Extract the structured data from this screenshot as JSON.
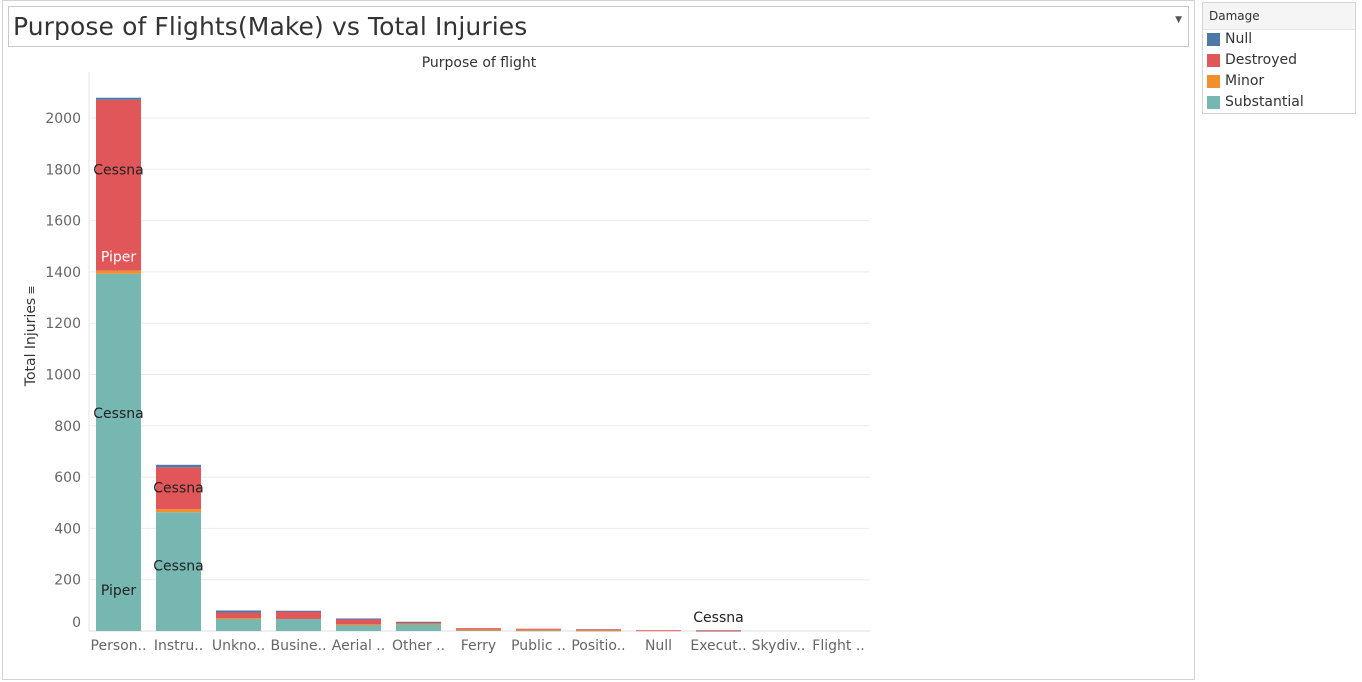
{
  "title": "Purpose of Flights(Make) vs Total Injuries",
  "legend": {
    "title": "Damage",
    "items": [
      {
        "label": "Null",
        "color": "#4e79a7"
      },
      {
        "label": "Destroyed",
        "color": "#e15759"
      },
      {
        "label": "Minor",
        "color": "#f28e2b"
      },
      {
        "label": "Substantial",
        "color": "#76b7b2"
      }
    ]
  },
  "chart_data": {
    "type": "bar",
    "stacked": true,
    "title": "Purpose of flight",
    "xlabel": "",
    "ylabel": "Total Injuries",
    "ylim": [
      0,
      2100
    ],
    "yticks": [
      0,
      200,
      400,
      600,
      800,
      1000,
      1200,
      1400,
      1600,
      1800,
      2000
    ],
    "grid": true,
    "legend_position": "top-right",
    "categories": [
      "Person..",
      "Instru..",
      "Unkno..",
      "Busine..",
      "Aerial ..",
      "Other ..",
      "Ferry",
      "Public ..",
      "Positio..",
      "Null",
      "Execut..",
      "Skydiv..",
      "Flight .."
    ],
    "series": [
      {
        "name": "Substantial",
        "color": "#76b7b2",
        "values": [
          1393,
          463,
          49,
          47,
          25,
          28,
          4,
          3,
          2,
          0,
          1,
          0,
          0
        ]
      },
      {
        "name": "Minor",
        "color": "#f28e2b",
        "values": [
          12,
          12,
          1,
          0,
          1,
          1,
          2,
          2,
          2,
          0,
          0,
          0,
          0
        ]
      },
      {
        "name": "Destroyed",
        "color": "#e15759",
        "values": [
          666,
          163,
          22,
          29,
          20,
          4,
          5,
          4,
          3,
          3,
          2,
          0,
          0
        ]
      },
      {
        "name": "Null",
        "color": "#4e79a7",
        "values": [
          8,
          10,
          8,
          3,
          3,
          3,
          0,
          0,
          0,
          0,
          0,
          0,
          0
        ]
      }
    ],
    "annotations": [
      {
        "category": "Person..",
        "y": 1800,
        "text": "Cessna",
        "color": "#222222"
      },
      {
        "category": "Person..",
        "y": 1460,
        "text": "Piper",
        "color": "#ffffff"
      },
      {
        "category": "Person..",
        "y": 850,
        "text": "Cessna",
        "color": "#222222"
      },
      {
        "category": "Person..",
        "y": 160,
        "text": "Piper",
        "color": "#222222"
      },
      {
        "category": "Instru..",
        "y": 560,
        "text": "Cessna",
        "color": "#222222"
      },
      {
        "category": "Instru..",
        "y": 255,
        "text": "Cessna",
        "color": "#222222"
      },
      {
        "category": "Execut..",
        "y": 55,
        "text": "Cessna",
        "color": "#222222"
      }
    ]
  }
}
